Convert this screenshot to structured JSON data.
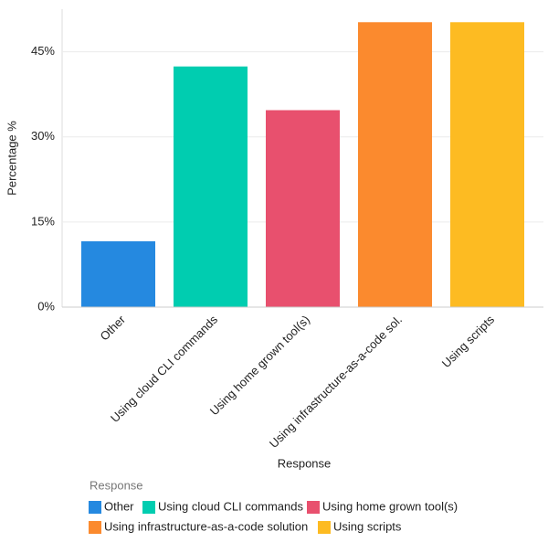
{
  "chart_data": {
    "type": "bar",
    "x_label": "Response",
    "y_label": "Percentage %",
    "categories": [
      "Other",
      "Using cloud CLI commands",
      "Using home grown tool(s)",
      "Using infrastructure-as-a-code sol.",
      "Using scripts"
    ],
    "values": [
      11.6,
      42.4,
      34.7,
      50.2,
      50.2
    ],
    "colors": [
      "#2589e0",
      "#00cdb0",
      "#e8506e",
      "#fb8a2e",
      "#fdbb22"
    ],
    "ylim": [
      0,
      52.5
    ],
    "yticks": [
      {
        "value": 0,
        "label": "0%"
      },
      {
        "value": 15,
        "label": "15%"
      },
      {
        "value": 30,
        "label": "30%"
      },
      {
        "value": 45,
        "label": "45%"
      }
    ],
    "grid": true,
    "legend": {
      "title": "Response",
      "items": [
        "Other",
        "Using cloud CLI commands",
        "Using home grown tool(s)",
        "Using infrastructure-as-a-code solution",
        "Using scripts"
      ]
    }
  }
}
